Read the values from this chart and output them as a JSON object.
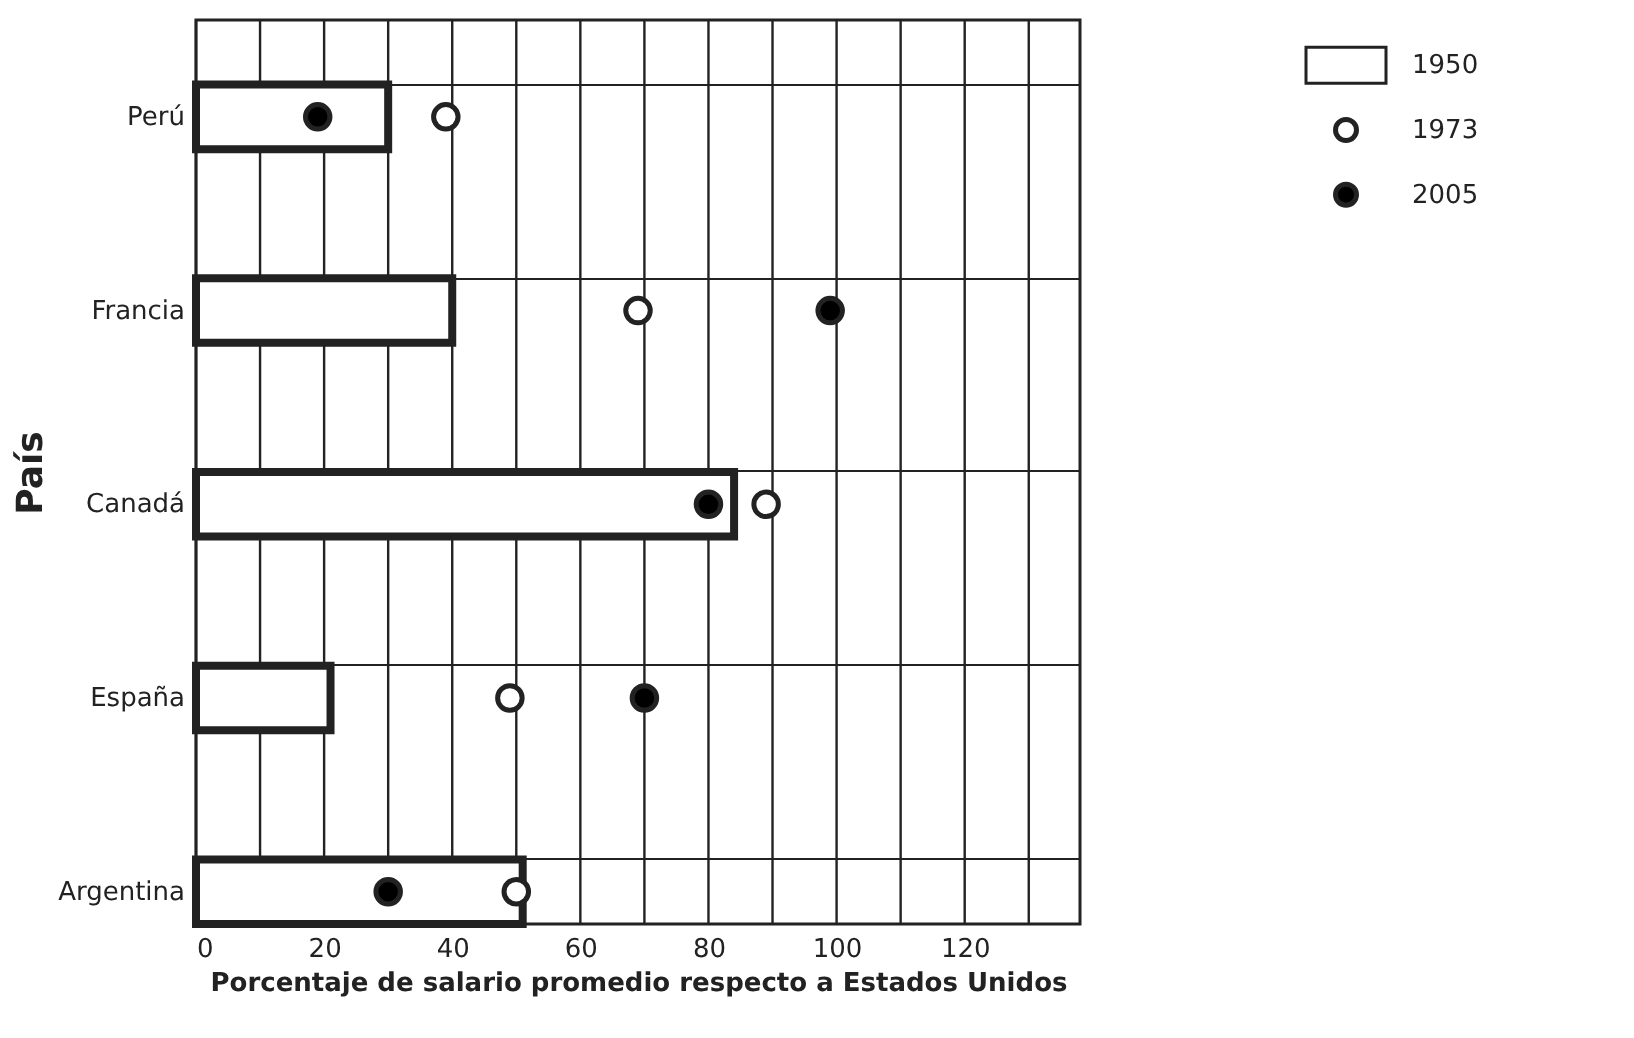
{
  "chart_data": {
    "type": "bar",
    "orientation": "horizontal",
    "categories": [
      "Perú",
      "Francia",
      "Canadá",
      "España",
      "Argentina"
    ],
    "series": [
      {
        "name": "1950",
        "color": "#ffffff",
        "values": [
          30,
          40,
          84,
          21,
          51
        ]
      },
      {
        "name": "1973",
        "type": "scatter",
        "marker": "circle",
        "color": "#ffffff",
        "values": [
          39,
          69,
          89,
          49,
          50
        ]
      },
      {
        "name": "2005",
        "type": "scatter",
        "marker": "circle",
        "color": "#000000",
        "values": [
          19,
          99,
          80,
          70,
          30
        ]
      }
    ],
    "xlabel": "Porcentaje de salario promedio respecto a Estados Unidos",
    "ylabel": "País",
    "xlim": [
      0,
      138
    ],
    "xticks": [
      0,
      {
        "value": 10,
        "label": null
      },
      20,
      {
        "value": 30,
        "label": null
      },
      40,
      {
        "value": 50,
        "label": null
      },
      60,
      {
        "value": 70,
        "label": null
      },
      80,
      {
        "value": 90,
        "label": null
      },
      100,
      {
        "value": 110,
        "label": null
      },
      120,
      {
        "value": 130,
        "label": null
      }
    ],
    "grid": true,
    "legend": "top right"
  }
}
